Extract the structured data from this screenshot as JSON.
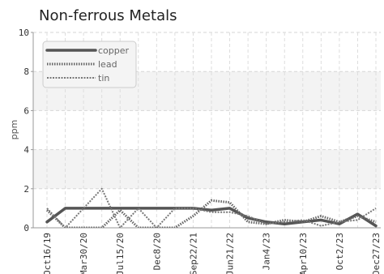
{
  "chart_data": {
    "type": "line",
    "title": "Non-ferrous Metals",
    "xlabel": "",
    "ylabel": "ppm",
    "ylim": [
      0,
      10
    ],
    "y_ticks": [
      "0",
      "2",
      "4",
      "6",
      "8",
      "10"
    ],
    "x_ticks": [
      "Oct16/19",
      "Mar30/20",
      "Jul15/20",
      "Dec8/20",
      "Sep22/21",
      "Jun21/22",
      "Jan4/23",
      "Apr10/23",
      "Oct2/23",
      "Dec27/23"
    ],
    "x": [
      "Oct16/19",
      "",
      "Mar30/20",
      "",
      "Jul15/20",
      "",
      "Dec8/20",
      "",
      "Sep22/21",
      "",
      "Jun21/22",
      "",
      "Jan4/23",
      "",
      "Apr10/23",
      "",
      "Oct2/23",
      "",
      "Dec27/23"
    ],
    "grid": true,
    "legend_position": "top-left",
    "series": [
      {
        "name": "copper",
        "color": "#555555",
        "style": "solid",
        "values": [
          0.3,
          1.0,
          1.0,
          1.0,
          1.0,
          1.0,
          1.0,
          1.0,
          1.0,
          0.9,
          1.0,
          0.5,
          0.3,
          0.2,
          0.3,
          0.4,
          0.2,
          0.7,
          0.1
        ]
      },
      {
        "name": "lead",
        "color": "#666666",
        "style": "dotted",
        "values": [
          0.9,
          0.0,
          0.0,
          0.0,
          0.9,
          0.0,
          0.0,
          0.0,
          0.6,
          1.4,
          1.3,
          0.3,
          0.2,
          0.4,
          0.3,
          0.6,
          0.3,
          0.6,
          0.3
        ]
      },
      {
        "name": "tin",
        "color": "#777777",
        "style": "dashed",
        "values": [
          1.0,
          0.0,
          1.0,
          2.0,
          0.0,
          1.0,
          0.0,
          1.0,
          1.0,
          0.8,
          0.8,
          0.6,
          0.2,
          0.3,
          0.4,
          0.1,
          0.3,
          0.4,
          1.0
        ]
      }
    ]
  }
}
